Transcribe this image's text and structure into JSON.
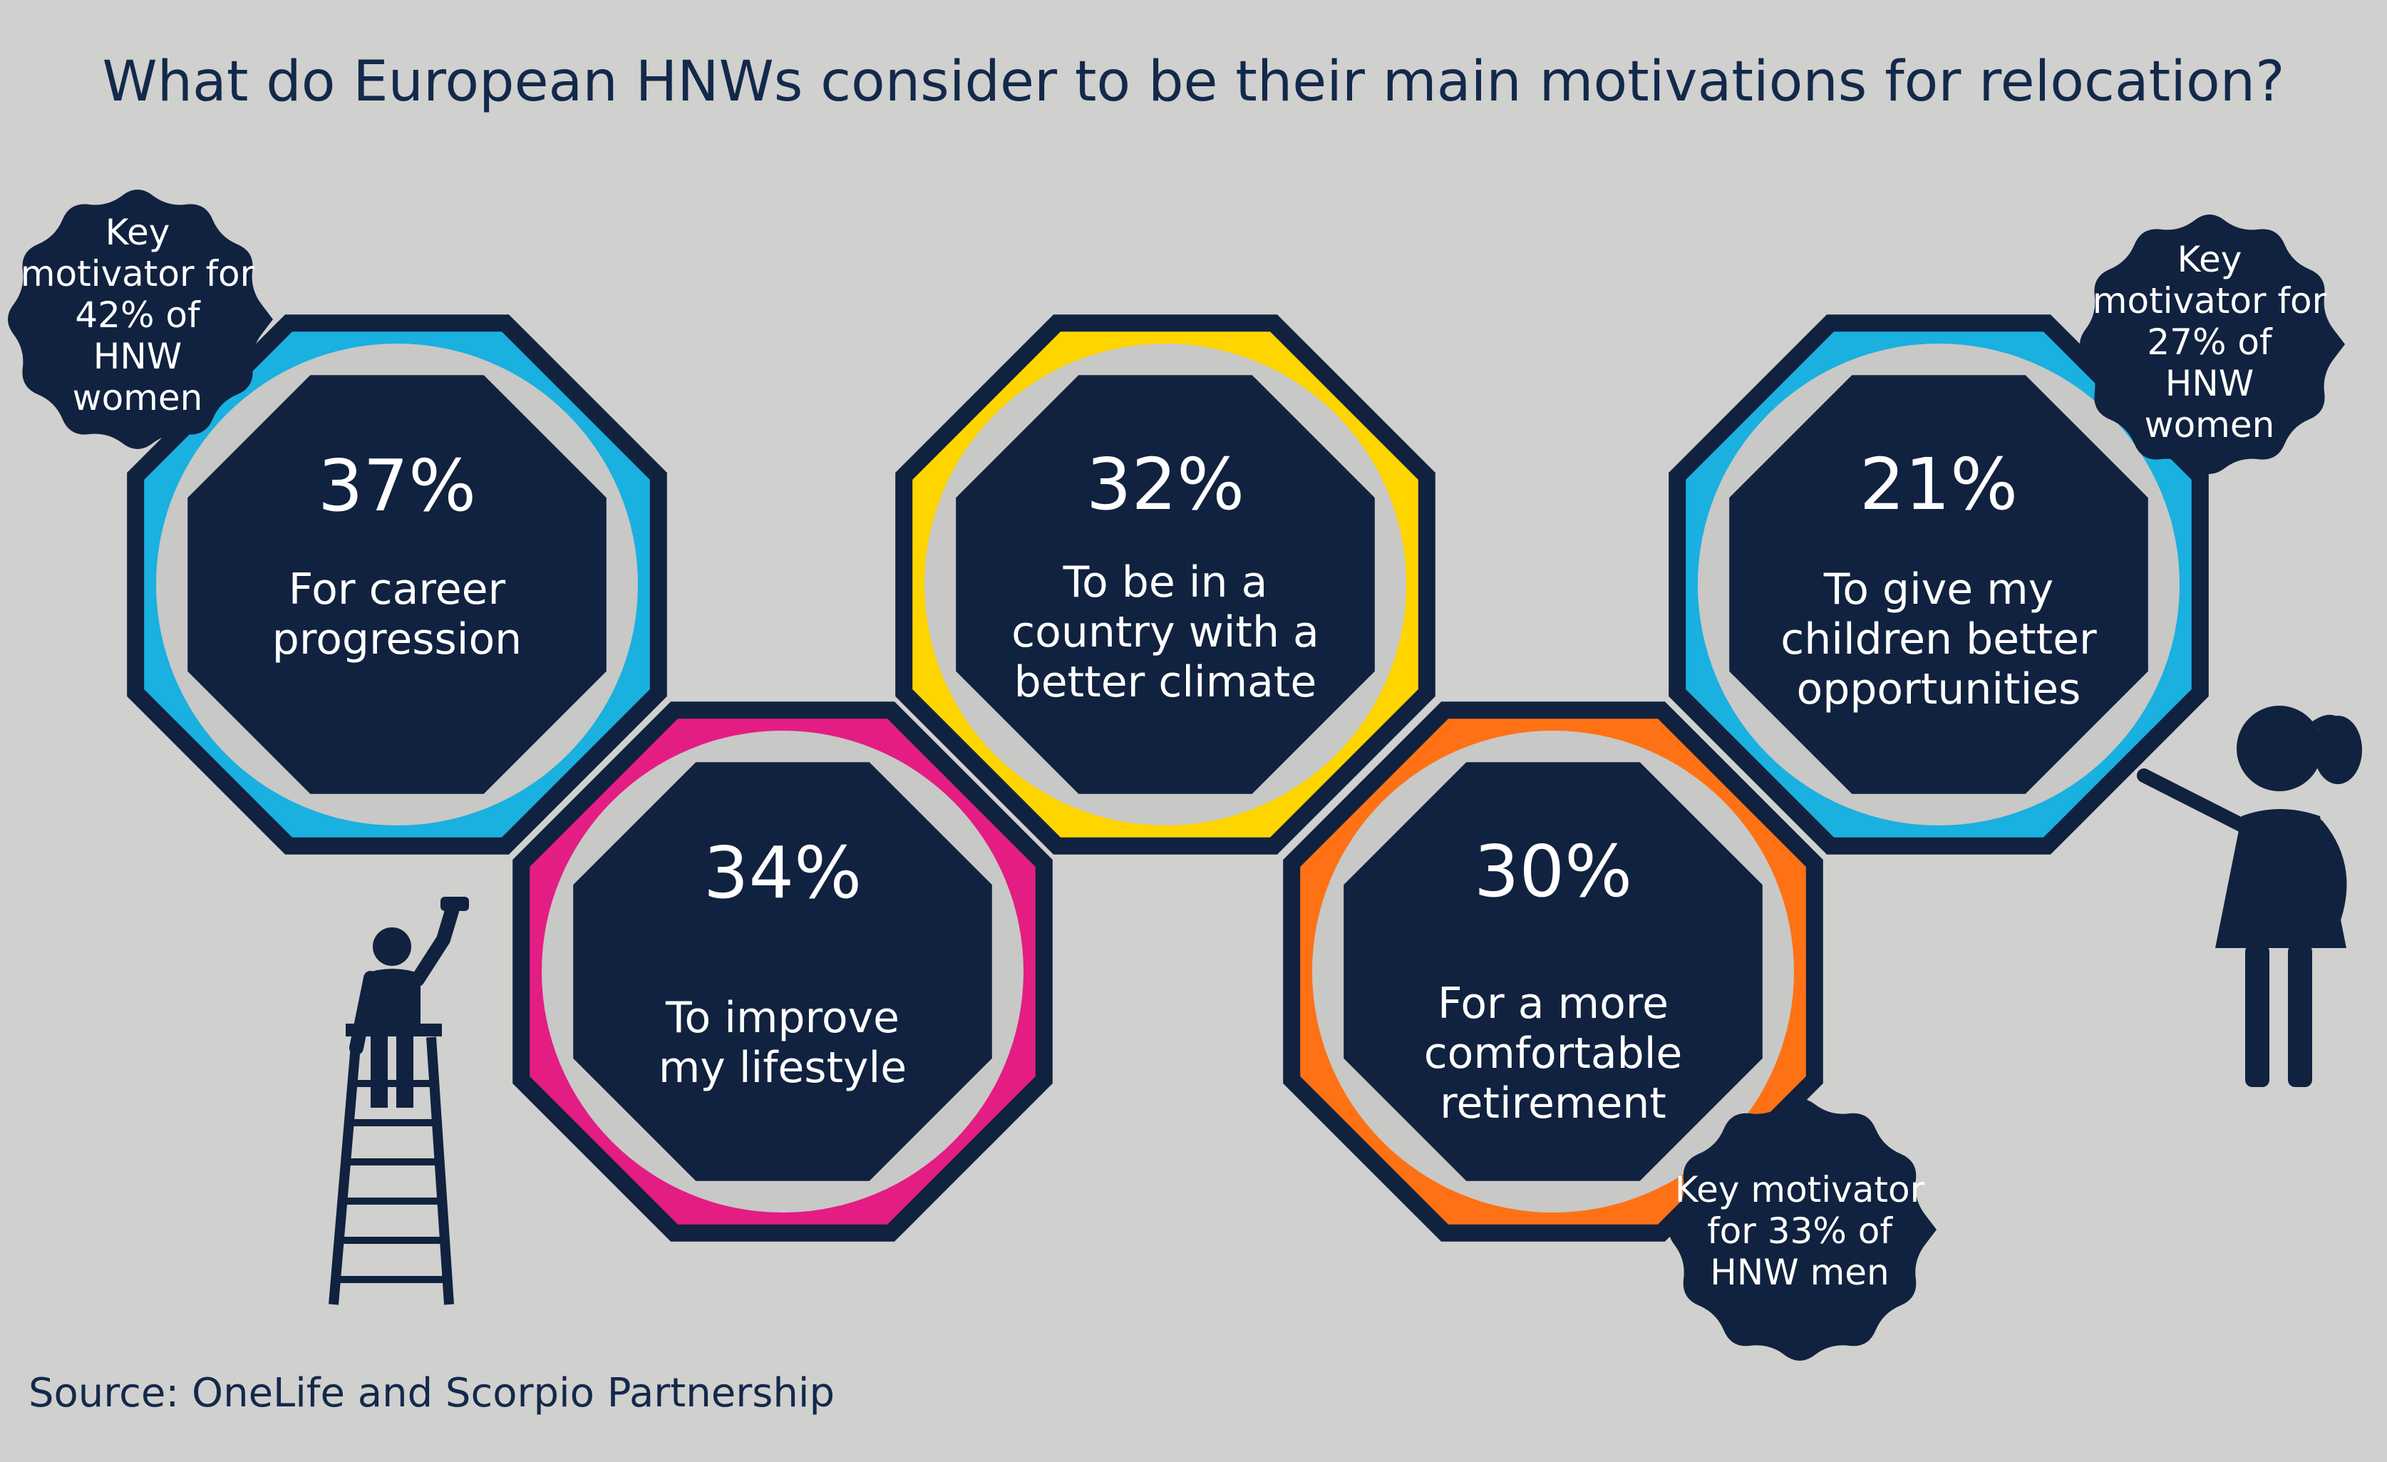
{
  "title": "What do European HNWs consider to be their main motivations for relocation?",
  "source": "Source: OneLife and Scorpio Partnership",
  "colors": {
    "background": "#d0d0ce",
    "navy": "#10223f",
    "ring_gap": "#c8c8c6",
    "blue": "#1ab0e0",
    "magenta": "#e31d84",
    "yellow": "#ffd500",
    "orange": "#ff7115"
  },
  "motivations": [
    {
      "percent": "37%",
      "label": "For career\nprogression",
      "color": "blue"
    },
    {
      "percent": "34%",
      "label": "To improve\nmy lifestyle",
      "color": "magenta"
    },
    {
      "percent": "32%",
      "label": "To be in a\ncountry with a\nbetter climate",
      "color": "yellow"
    },
    {
      "percent": "30%",
      "label": "For a more\ncomfortable\nretirement",
      "color": "orange"
    },
    {
      "percent": "21%",
      "label": "To give my\nchildren better\nopportunities",
      "color": "blue"
    }
  ],
  "callouts": [
    {
      "text": "Key\nmotivator for\n42% of\nHNW\nwomen"
    },
    {
      "text": "Key\nmotivator for\n27% of\nHNW\nwomen"
    },
    {
      "text": "Key motivator\nfor 33% of\nHNW men"
    }
  ],
  "icons": [
    "painter-on-ladder-icon",
    "girl-painting-icon"
  ]
}
